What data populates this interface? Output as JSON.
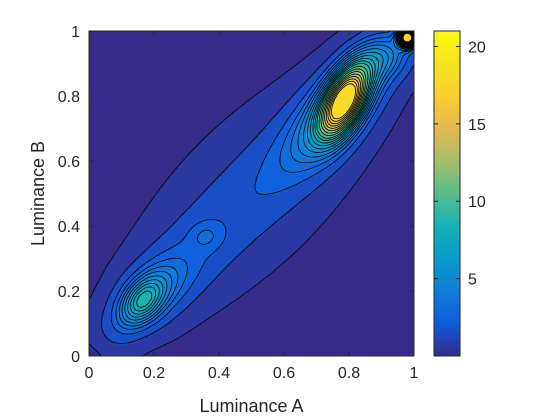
{
  "chart_data": {
    "type": "heatmap",
    "subtype": "filled-contour",
    "title": "",
    "xlabel": "Luminance A",
    "ylabel": "Luminance B",
    "xlim": [
      0,
      1
    ],
    "ylim": [
      0,
      1
    ],
    "x_ticks": [
      0,
      0.2,
      0.4,
      0.6,
      0.8,
      1
    ],
    "x_tick_labels": [
      "0",
      "0.2",
      "0.4",
      "0.6",
      "0.8",
      "1"
    ],
    "y_ticks": [
      0,
      0.2,
      0.4,
      0.6,
      0.8,
      1
    ],
    "y_tick_labels": [
      "0",
      "0.2",
      "0.4",
      "0.6",
      "0.8",
      "1"
    ],
    "colorbar": {
      "range": [
        0,
        21
      ],
      "ticks": [
        5,
        10,
        15,
        20
      ],
      "tick_labels": [
        "5",
        "10",
        "15",
        "20"
      ],
      "colormap": "parula"
    },
    "contour_levels": [
      0.15,
      1.0,
      2.0,
      2.8,
      3.5,
      4.2,
      5.0,
      5.8,
      6.6,
      7.4,
      8.2,
      9.0,
      10.0,
      11.0,
      12.0,
      13.0,
      14.0,
      15.0,
      16.0,
      17.0
    ],
    "peaks": [
      {
        "x": 0.165,
        "y": 0.17,
        "value": 6.5
      },
      {
        "x": 0.785,
        "y": 0.785,
        "value": 17
      },
      {
        "x": 0.975,
        "y": 0.975,
        "value": 21
      },
      {
        "x": 0.36,
        "y": 0.36,
        "value": 3
      },
      {
        "x": 0.55,
        "y": 0.55,
        "value": 2.5
      }
    ],
    "grid": false
  }
}
